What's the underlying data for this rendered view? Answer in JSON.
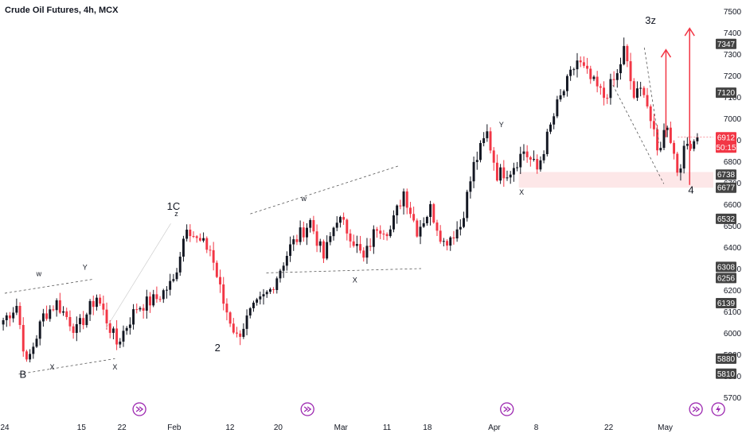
{
  "header": {
    "title": "Crude Oil Futures, 4h, MCX"
  },
  "chart_data": {
    "type": "candlestick",
    "title": "Crude Oil Futures, 4h, MCX",
    "y_range": [
      5640,
      7560
    ],
    "y_ticks": [
      5700,
      5800,
      5900,
      6000,
      6100,
      6200,
      6300,
      6400,
      6500,
      6600,
      6700,
      6800,
      6900,
      7000,
      7100,
      7200,
      7300,
      7400,
      7500
    ],
    "x_ticks": [
      {
        "label": "24",
        "pos": 0
      },
      {
        "label": "15",
        "pos": 0.11
      },
      {
        "label": "22",
        "pos": 0.168
      },
      {
        "label": "Feb",
        "pos": 0.243
      },
      {
        "label": "12",
        "pos": 0.323
      },
      {
        "label": "20",
        "pos": 0.392
      },
      {
        "label": "Mar",
        "pos": 0.482
      },
      {
        "label": "11",
        "pos": 0.548
      },
      {
        "label": "18",
        "pos": 0.606
      },
      {
        "label": "Apr",
        "pos": 0.702
      },
      {
        "label": "8",
        "pos": 0.762
      },
      {
        "label": "22",
        "pos": 0.866
      },
      {
        "label": "May",
        "pos": 0.947
      }
    ],
    "price_badges": [
      {
        "value": 7347,
        "text": "7347",
        "color": "#444444"
      },
      {
        "value": 7120,
        "text": "7120",
        "color": "#444444"
      },
      {
        "value": 6912,
        "text": "6912",
        "sub": "50:15",
        "color": "#f23645"
      },
      {
        "value": 6738,
        "text": "6738",
        "color": "#444444"
      },
      {
        "value": 6677,
        "text": "6677",
        "color": "#444444"
      },
      {
        "value": 6532,
        "text": "6532",
        "color": "#444444"
      },
      {
        "value": 6308,
        "text": "6308",
        "color": "#444444"
      },
      {
        "value": 6256,
        "text": "6256",
        "color": "#444444"
      },
      {
        "value": 6139,
        "text": "6139",
        "color": "#444444"
      },
      {
        "value": 5880,
        "text": "5880",
        "color": "#444444"
      },
      {
        "value": 5810,
        "text": "5810",
        "color": "#444444"
      }
    ],
    "anchors": [
      {
        "i": 0,
        "p": 6060
      },
      {
        "i": 4,
        "p": 6130
      },
      {
        "i": 7,
        "p": 5850
      },
      {
        "i": 12,
        "p": 6080
      },
      {
        "i": 16,
        "p": 6140
      },
      {
        "i": 22,
        "p": 6010
      },
      {
        "i": 28,
        "p": 6170
      },
      {
        "i": 34,
        "p": 5950
      },
      {
        "i": 40,
        "p": 6120
      },
      {
        "i": 46,
        "p": 6160
      },
      {
        "i": 51,
        "p": 6240
      },
      {
        "i": 55,
        "p": 6510
      },
      {
        "i": 58,
        "p": 6430
      },
      {
        "i": 62,
        "p": 6390
      },
      {
        "i": 66,
        "p": 6140
      },
      {
        "i": 70,
        "p": 5980
      },
      {
        "i": 74,
        "p": 6090
      },
      {
        "i": 80,
        "p": 6200
      },
      {
        "i": 86,
        "p": 6400
      },
      {
        "i": 92,
        "p": 6520
      },
      {
        "i": 96,
        "p": 6350
      },
      {
        "i": 100,
        "p": 6540
      },
      {
        "i": 104,
        "p": 6460
      },
      {
        "i": 108,
        "p": 6340
      },
      {
        "i": 112,
        "p": 6500
      },
      {
        "i": 116,
        "p": 6480
      },
      {
        "i": 120,
        "p": 6660
      },
      {
        "i": 124,
        "p": 6480
      },
      {
        "i": 128,
        "p": 6580
      },
      {
        "i": 132,
        "p": 6420
      },
      {
        "i": 137,
        "p": 6500
      },
      {
        "i": 141,
        "p": 6780
      },
      {
        "i": 145,
        "p": 6930
      },
      {
        "i": 148,
        "p": 6740
      },
      {
        "i": 152,
        "p": 6760
      },
      {
        "i": 156,
        "p": 6850
      },
      {
        "i": 160,
        "p": 6760
      },
      {
        "i": 166,
        "p": 7060
      },
      {
        "i": 172,
        "p": 7270
      },
      {
        "i": 176,
        "p": 7180
      },
      {
        "i": 180,
        "p": 7100
      },
      {
        "i": 184,
        "p": 7200
      },
      {
        "i": 186,
        "p": 7320
      },
      {
        "i": 189,
        "p": 7100
      },
      {
        "i": 192,
        "p": 7140
      },
      {
        "i": 196,
        "p": 6840
      },
      {
        "i": 199,
        "p": 6980
      },
      {
        "i": 202,
        "p": 6760
      },
      {
        "i": 205,
        "p": 6880
      },
      {
        "i": 208,
        "p": 6912
      }
    ],
    "zone": {
      "from": 6677,
      "to": 6750,
      "color": "#f23645"
    },
    "annotations": [
      {
        "text": "B",
        "pos": 0.026,
        "price": 5790,
        "size": 13,
        "color": "#131722"
      },
      {
        "text": "1C",
        "pos": 0.242,
        "price": 6574,
        "size": 13,
        "color": "#131722"
      },
      {
        "text": "2",
        "pos": 0.305,
        "price": 5915,
        "size": 13,
        "color": "#131722"
      },
      {
        "text": "3z",
        "pos": 0.926,
        "price": 7440,
        "size": 13,
        "color": "#131722"
      },
      {
        "text": "4",
        "pos": 0.984,
        "price": 6650,
        "size": 13,
        "color": "#131722"
      },
      {
        "text": "w",
        "pos": 0.049,
        "price": 6265,
        "size": 9,
        "color": "#131722"
      },
      {
        "text": "Y",
        "pos": 0.115,
        "price": 6295,
        "size": 9,
        "color": "#131722"
      },
      {
        "text": "X",
        "pos": 0.068,
        "price": 5830,
        "size": 9,
        "color": "#131722"
      },
      {
        "text": "X",
        "pos": 0.158,
        "price": 5830,
        "size": 9,
        "color": "#131722"
      },
      {
        "text": "z",
        "pos": 0.246,
        "price": 6545,
        "size": 9,
        "color": "#131722"
      },
      {
        "text": "w",
        "pos": 0.429,
        "price": 6615,
        "size": 9,
        "color": "#131722"
      },
      {
        "text": "X",
        "pos": 0.502,
        "price": 6235,
        "size": 9,
        "color": "#131722"
      },
      {
        "text": "Y",
        "pos": 0.712,
        "price": 6960,
        "size": 9,
        "color": "#131722"
      },
      {
        "text": "X",
        "pos": 0.741,
        "price": 6645,
        "size": 9,
        "color": "#131722"
      }
    ],
    "event_icons": [
      {
        "pos": 0.193,
        "type": "forward"
      },
      {
        "pos": 0.434,
        "type": "forward"
      },
      {
        "pos": 0.72,
        "type": "forward"
      },
      {
        "pos": 0.991,
        "type": "forward"
      },
      {
        "pos": 1.023,
        "type": "lightning"
      }
    ],
    "colors": {
      "up": "#131722",
      "down": "#f23645",
      "axis_text": "#131722",
      "grid": "#ffffff"
    }
  }
}
